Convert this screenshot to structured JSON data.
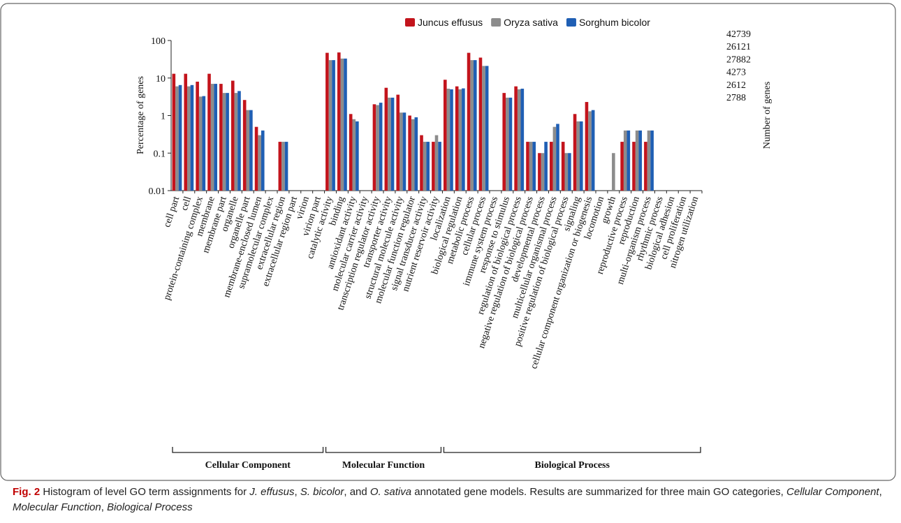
{
  "chart_data": {
    "type": "bar",
    "log_scale": true,
    "ylabel": "Percentage of genes",
    "y2label": "Number of genes",
    "right_labels": [
      42739,
      26121,
      27882,
      4273,
      2612,
      2788
    ],
    "ylim": [
      0.01,
      100
    ],
    "yticks": [
      0.01,
      0.1,
      1,
      10,
      100
    ],
    "categories": [
      "cell part",
      "cell",
      "protein-containing complex",
      "membrane",
      "membrane part",
      "organelle",
      "organelle part",
      "membrane-enclosed lumen",
      "supramolecular complex",
      "extracellular region",
      "extracellular region part",
      "virion",
      "virion part",
      "catalytic activity",
      "binding",
      "antioxidant activity",
      "molecular carrier activity",
      "transcription regulator activity",
      "transporter activity",
      "structural molecule activity",
      "molecular function regulator",
      "signal transducer activity",
      "nutrient reservoir activity",
      "localization",
      "biological regulation",
      "metabolic process",
      "cellular process",
      "immune system process",
      "response to stimulus",
      "regulation of biological process",
      "negative regulation of biological process",
      "developmental process",
      "multicellular organismal process",
      "positive regulation of biological process",
      "signaling",
      "cellular component organization or biogenesis",
      "locomotion",
      "growth",
      "reproductive process",
      "reproduction",
      "multi-organism process",
      "rhythmic process",
      "biological adhesion",
      "cell proliferation",
      "nitrogen utilization"
    ],
    "groups": [
      "Cellular Component",
      "Molecular Function",
      "Biological Process"
    ],
    "series": [
      {
        "name": "Juncus effusus",
        "color": "#c3141c",
        "values": [
          13,
          13,
          8,
          13,
          7,
          8.5,
          2.6,
          0.5,
          null,
          0.2,
          null,
          null,
          null,
          47,
          48,
          1.1,
          null,
          2,
          5.5,
          3.6,
          1,
          0.3,
          0.2,
          9,
          6,
          47,
          35,
          null,
          4,
          6,
          0.2,
          0.1,
          0.2,
          0.2,
          1.1,
          2.3,
          null,
          null,
          0.2,
          0.2,
          0.2,
          null,
          null,
          null,
          null
        ]
      },
      {
        "name": "Oryza sativa",
        "color": "#8c8c8c",
        "values": [
          6,
          6,
          3.2,
          7,
          4,
          4,
          1.4,
          0.3,
          null,
          0.2,
          null,
          null,
          null,
          30,
          33,
          0.8,
          null,
          1.9,
          3,
          1.2,
          0.8,
          0.2,
          0.3,
          5.2,
          5,
          30,
          21,
          null,
          3,
          5,
          0.2,
          0.1,
          0.5,
          0.1,
          0.7,
          1.3,
          null,
          0.1,
          0.4,
          0.4,
          0.4,
          null,
          null,
          null,
          null
        ]
      },
      {
        "name": "Sorghum bicolor",
        "color": "#1f5fb4",
        "values": [
          6.5,
          6.5,
          3.3,
          7,
          4,
          4.5,
          1.4,
          0.4,
          null,
          0.2,
          null,
          null,
          null,
          30,
          33,
          0.7,
          null,
          2.2,
          3,
          1.2,
          0.9,
          0.2,
          0.2,
          5,
          5.3,
          30,
          21,
          null,
          3,
          5.2,
          0.2,
          0.2,
          0.6,
          0.1,
          0.7,
          1.4,
          null,
          null,
          0.4,
          0.4,
          0.4,
          null,
          null,
          null,
          null
        ]
      }
    ]
  },
  "caption": {
    "label": "Fig. 2",
    "segments": [
      {
        "text": " Histogram of level GO term assignments for ",
        "italic": false
      },
      {
        "text": "J. effusus",
        "italic": true
      },
      {
        "text": ", ",
        "italic": false
      },
      {
        "text": "S. bicolor",
        "italic": true
      },
      {
        "text": ", and ",
        "italic": false
      },
      {
        "text": "O. sativa",
        "italic": true
      },
      {
        "text": " annotated gene models. Results are summarized for three main GO categories, ",
        "italic": false
      },
      {
        "text": "Cellular Component",
        "italic": true
      },
      {
        "text": ", ",
        "italic": false
      },
      {
        "text": "Molecular Function",
        "italic": true
      },
      {
        "text": ", ",
        "italic": false
      },
      {
        "text": "Biological Process",
        "italic": true
      }
    ]
  }
}
